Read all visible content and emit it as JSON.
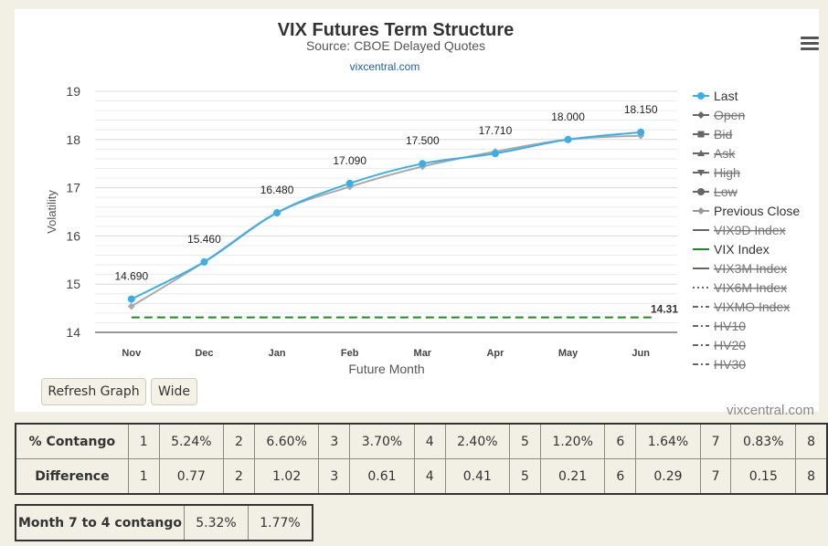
{
  "chart_data": {
    "type": "line",
    "title": "VIX Futures Term Structure",
    "subtitle": "Source: CBOE Delayed Quotes",
    "link": "vixcentral.com",
    "xlabel": "Future Month",
    "ylabel": "Volatility",
    "categories": [
      "Nov",
      "Dec",
      "Jan",
      "Feb",
      "Mar",
      "Apr",
      "May",
      "Jun"
    ],
    "ylim": [
      14,
      19
    ],
    "yticks": [
      14,
      15,
      16,
      17,
      18,
      19
    ],
    "grid": true,
    "legend_position": "right",
    "series": [
      {
        "name": "Last",
        "values": [
          14.69,
          15.46,
          16.48,
          17.09,
          17.5,
          17.71,
          18.0,
          18.15
        ],
        "labels": [
          "14.690",
          "15.460",
          "16.480",
          "17.090",
          "17.500",
          "17.710",
          "18.000",
          "18.150"
        ],
        "color": "#3aaee8"
      },
      {
        "name": "Previous Close",
        "values": [
          14.54,
          15.46,
          16.48,
          17.02,
          17.44,
          17.75,
          18.0,
          18.08
        ],
        "color": "#aaaaaa"
      },
      {
        "name": "VIX Index",
        "values": [
          14.31,
          14.31,
          14.31,
          14.31,
          14.31,
          14.31,
          14.31,
          14.31
        ],
        "end_label": "14.31",
        "color": "#1d8a1d"
      }
    ],
    "legend": [
      {
        "name": "Last",
        "symbol": "circle",
        "active": true
      },
      {
        "name": "Open",
        "symbol": "diamond",
        "active": false
      },
      {
        "name": "Bid",
        "symbol": "square",
        "active": false
      },
      {
        "name": "Ask",
        "symbol": "triangle",
        "active": false
      },
      {
        "name": "High",
        "symbol": "triangle-down",
        "active": false
      },
      {
        "name": "Low",
        "symbol": "circle",
        "active": false
      },
      {
        "name": "Previous Close",
        "symbol": "diamond",
        "active": true
      },
      {
        "name": "VIX9D Index",
        "symbol": "solid-line",
        "active": false
      },
      {
        "name": "VIX Index",
        "symbol": "solid-line",
        "active": true
      },
      {
        "name": "VIX3M Index",
        "symbol": "solid-line",
        "active": false
      },
      {
        "name": "VIX6M Index",
        "symbol": "dotted-line",
        "active": false
      },
      {
        "name": "VIXMO Index",
        "symbol": "dash-dot-line",
        "active": false
      },
      {
        "name": "HV10",
        "symbol": "dash-dot-line",
        "active": false
      },
      {
        "name": "HV20",
        "symbol": "dash-dot-line",
        "active": false
      },
      {
        "name": "HV30",
        "symbol": "dash-dot-line",
        "active": false
      }
    ]
  },
  "buttons": {
    "refresh": "Refresh Graph",
    "wide": "Wide"
  },
  "credit": "vixcentral.com",
  "contango_table": {
    "rows": [
      {
        "label": "% Contango",
        "cells": [
          "1",
          "5.24%",
          "2",
          "6.60%",
          "3",
          "3.70%",
          "4",
          "2.40%",
          "5",
          "1.20%",
          "6",
          "1.64%",
          "7",
          "0.83%",
          "8"
        ]
      },
      {
        "label": "Difference",
        "cells": [
          "1",
          "0.77",
          "2",
          "1.02",
          "3",
          "0.61",
          "4",
          "0.41",
          "5",
          "0.21",
          "6",
          "0.29",
          "7",
          "0.15",
          "8"
        ]
      }
    ]
  },
  "month_table": {
    "label": "Month 7 to 4 contango",
    "cells": [
      "5.32%",
      "1.77%"
    ]
  }
}
